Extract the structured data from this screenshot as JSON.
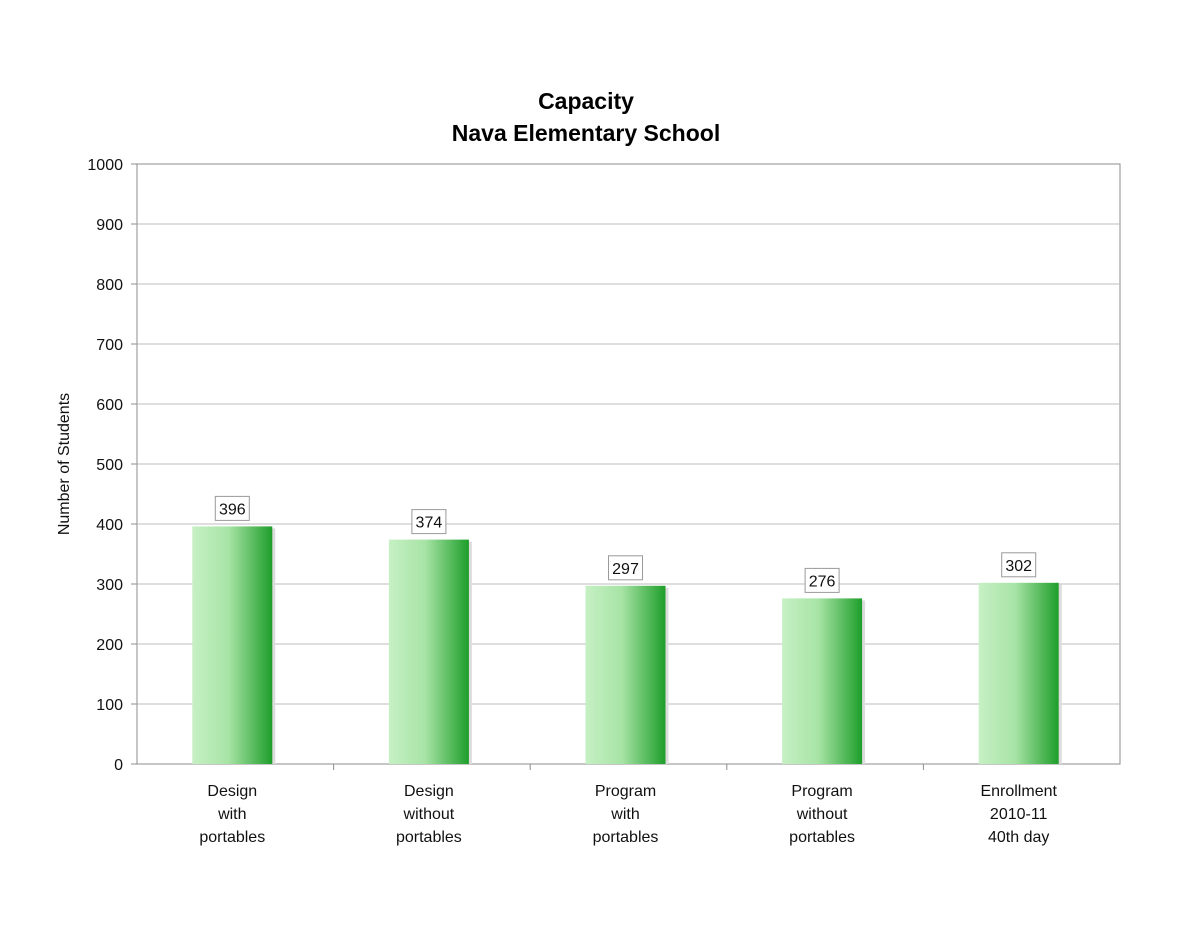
{
  "chart_data": {
    "type": "bar",
    "title": [
      "Capacity",
      "Nava Elementary School"
    ],
    "ylabel": "Number of Students",
    "xlabel": "",
    "ylim": [
      0,
      1000
    ],
    "yticks": [
      0,
      100,
      200,
      300,
      400,
      500,
      600,
      700,
      800,
      900,
      1000
    ],
    "grid": true,
    "categories": [
      [
        "Design",
        "with",
        "portables"
      ],
      [
        "Design",
        "without",
        "portables"
      ],
      [
        "Program",
        "with",
        "portables"
      ],
      [
        "Program",
        "without",
        "portables"
      ],
      [
        "Enrollment",
        "2010-11",
        "40th day"
      ]
    ],
    "values": [
      396,
      374,
      297,
      276,
      302
    ],
    "data_labels": [
      "396",
      "374",
      "297",
      "276",
      "302"
    ],
    "colors": {
      "bar_light": "#c6f0c4",
      "bar_dark": "#1e9e2a",
      "grid": "#bdbdbd",
      "axis": "#8c8c8c"
    }
  }
}
